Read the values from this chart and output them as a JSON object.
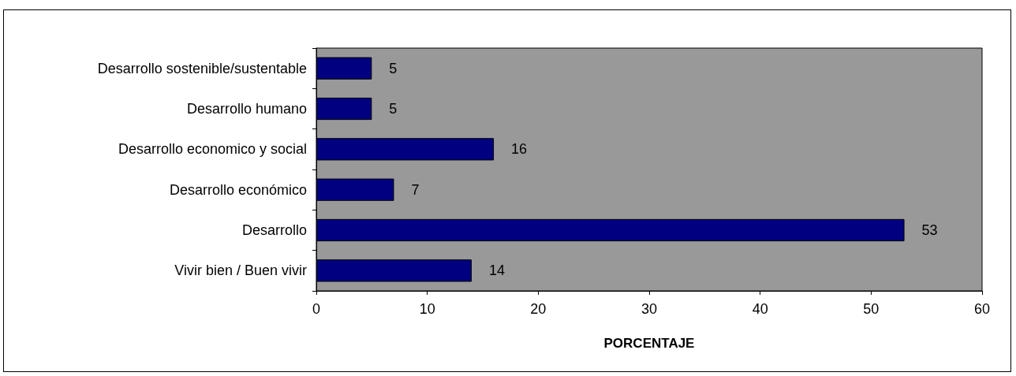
{
  "chart_data": {
    "type": "bar",
    "orientation": "horizontal",
    "xlabel": "PORCENTAJE",
    "categories": [
      "Desarrollo sostenible/sustentable",
      "Desarrollo humano",
      "Desarrollo economico y social",
      "Desarrollo económico",
      "Desarrollo",
      "Vivir bien / Buen vivir"
    ],
    "values": [
      5,
      5,
      16,
      7,
      53,
      14
    ],
    "color": "#000080",
    "xlim": [
      0,
      60
    ],
    "xticks": [
      0,
      10,
      20,
      30,
      40,
      50,
      60
    ],
    "grid": false,
    "data_labels": true
  }
}
